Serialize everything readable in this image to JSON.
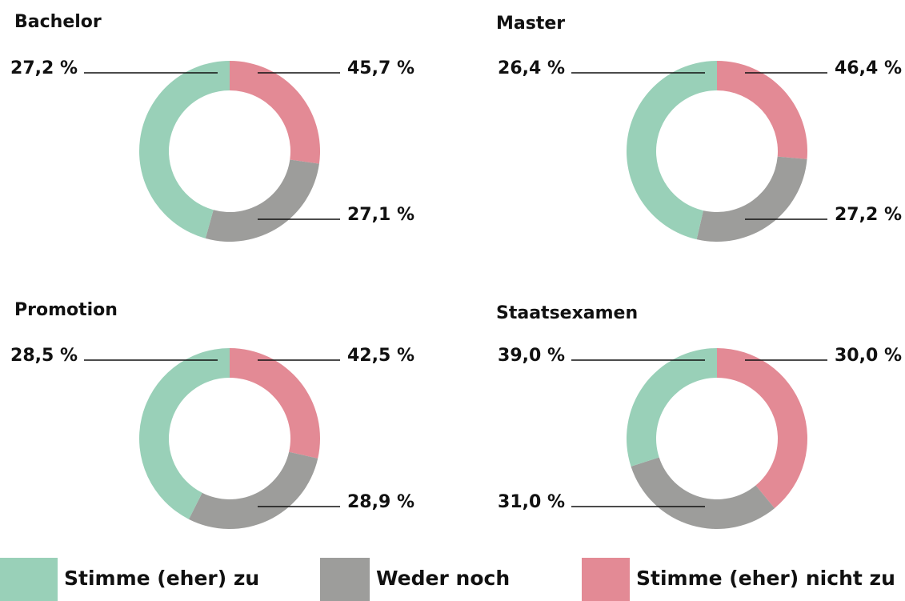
{
  "legend": [
    {
      "name": "Stimme (eher) zu",
      "color": "#99d0b8"
    },
    {
      "name": "Weder noch",
      "color": "#9d9d9b"
    },
    {
      "name": "Stimme (eher) nicht zu",
      "color": "#e38a95"
    }
  ],
  "chart_data": [
    {
      "type": "pie",
      "title": "Bachelor",
      "values": [
        45.7,
        27.1,
        27.2
      ],
      "value_labels": [
        "45,7 %",
        "27,1 %",
        "27,2 %"
      ]
    },
    {
      "type": "pie",
      "title": "Master",
      "values": [
        46.4,
        27.2,
        26.4
      ],
      "value_labels": [
        "46,4 %",
        "27,2 %",
        "26,4 %"
      ]
    },
    {
      "type": "pie",
      "title": "Promotion",
      "values": [
        42.5,
        28.9,
        28.5
      ],
      "value_labels": [
        "42,5 %",
        "28,9 %",
        "28,5 %"
      ]
    },
    {
      "type": "pie",
      "title": "Staatsexamen",
      "values": [
        30.0,
        31.0,
        39.0
      ],
      "value_labels": [
        "30,0 %",
        "31,0 %",
        "39,0 %"
      ]
    }
  ]
}
